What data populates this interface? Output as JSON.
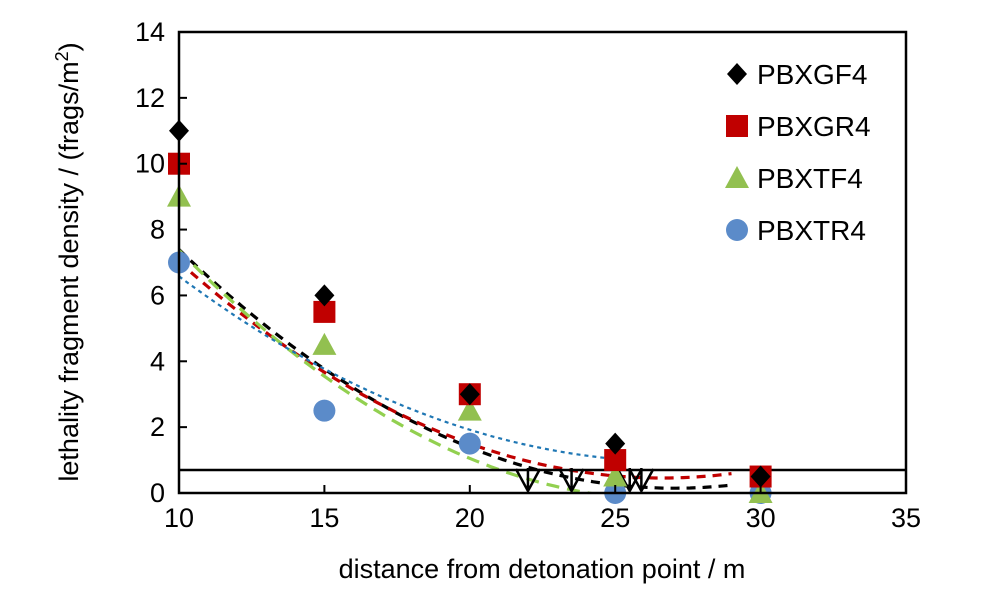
{
  "chart_data": {
    "type": "scatter",
    "title": "",
    "xlabel": "distance from detonation point / m",
    "ylabel_main": "lethality fragment density / (frags/m",
    "ylabel_sup": "2",
    "ylabel_close": ")",
    "xlim": [
      10,
      35
    ],
    "ylim": [
      0,
      14
    ],
    "x_ticks": [
      10,
      15,
      20,
      25,
      30,
      35
    ],
    "y_ticks": [
      0,
      2,
      4,
      6,
      8,
      10,
      12,
      14
    ],
    "threshold_line": 0.7,
    "legend_position": "top-right",
    "series": [
      {
        "name": "PBXGF4",
        "marker": "diamond",
        "color": "#000000",
        "x": [
          10,
          15,
          20,
          25,
          30
        ],
        "y": [
          11.0,
          6.0,
          3.0,
          1.5,
          0.5
        ],
        "fit": {
          "a": 0.02496,
          "b": -1.35,
          "c": 18.4,
          "range": [
            10,
            29
          ]
        }
      },
      {
        "name": "PBXGR4",
        "marker": "square",
        "color": "#C00000",
        "x": [
          10,
          15,
          20,
          25,
          30
        ],
        "y": [
          10.0,
          5.5,
          3.0,
          1.0,
          0.5
        ],
        "fit": {
          "a": 0.02375,
          "b": -1.265,
          "c": 17.3,
          "range": [
            10,
            29
          ]
        }
      },
      {
        "name": "PBXTF4",
        "marker": "triangle",
        "color": "#92C050",
        "x": [
          10,
          15,
          20,
          25,
          30
        ],
        "y": [
          9.0,
          4.5,
          2.5,
          0.5,
          0.0
        ],
        "fit": {
          "a": 0.0266,
          "b": -1.43,
          "c": 19.01,
          "range": [
            10,
            29.5
          ]
        }
      },
      {
        "name": "PBXTR4",
        "marker": "circle",
        "color": "#5B8BC9",
        "x": [
          10,
          15,
          20,
          25,
          30
        ],
        "y": [
          7.0,
          2.5,
          1.5,
          0.0,
          0.0
        ],
        "fit": {
          "a": 0.0193,
          "b": -1.045,
          "c": 15.1,
          "range": [
            10,
            25
          ]
        }
      }
    ],
    "fit_colors": [
      "#000000",
      "#C00000",
      "#92D050",
      "#1F77B4"
    ],
    "arrows_x": [
      22.0,
      23.5,
      25.5,
      25.9
    ]
  }
}
